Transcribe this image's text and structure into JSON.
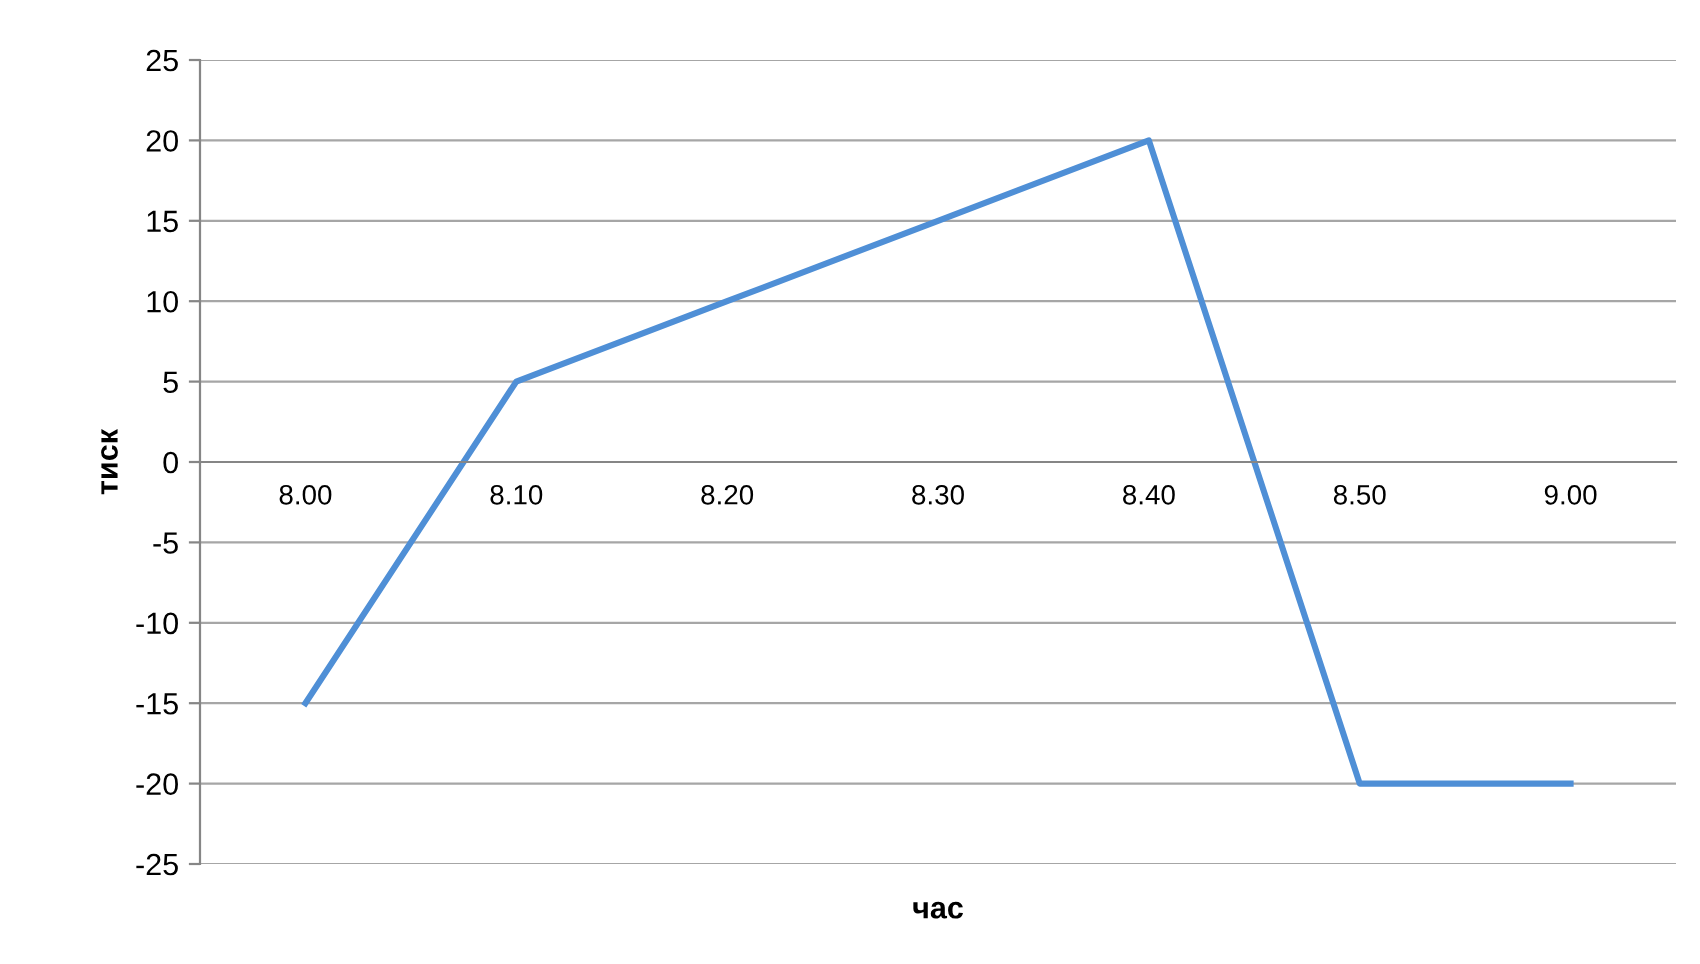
{
  "chart_data": {
    "type": "line",
    "xlabel": "час",
    "ylabel": "тиск",
    "categories": [
      "8.00",
      "8.10",
      "8.20",
      "8.30",
      "8.40",
      "8.50",
      "9.00"
    ],
    "series": [
      {
        "color": "#4f8fd6",
        "values": [
          -15,
          5,
          10,
          15,
          20,
          -20,
          -20
        ]
      }
    ],
    "ylim": [
      -25,
      25
    ],
    "yticks": [
      -25,
      -20,
      -15,
      -10,
      -5,
      0,
      5,
      10,
      15,
      20,
      25
    ],
    "grid": "y",
    "legend": false,
    "marker": "none",
    "line_style": "solid"
  }
}
